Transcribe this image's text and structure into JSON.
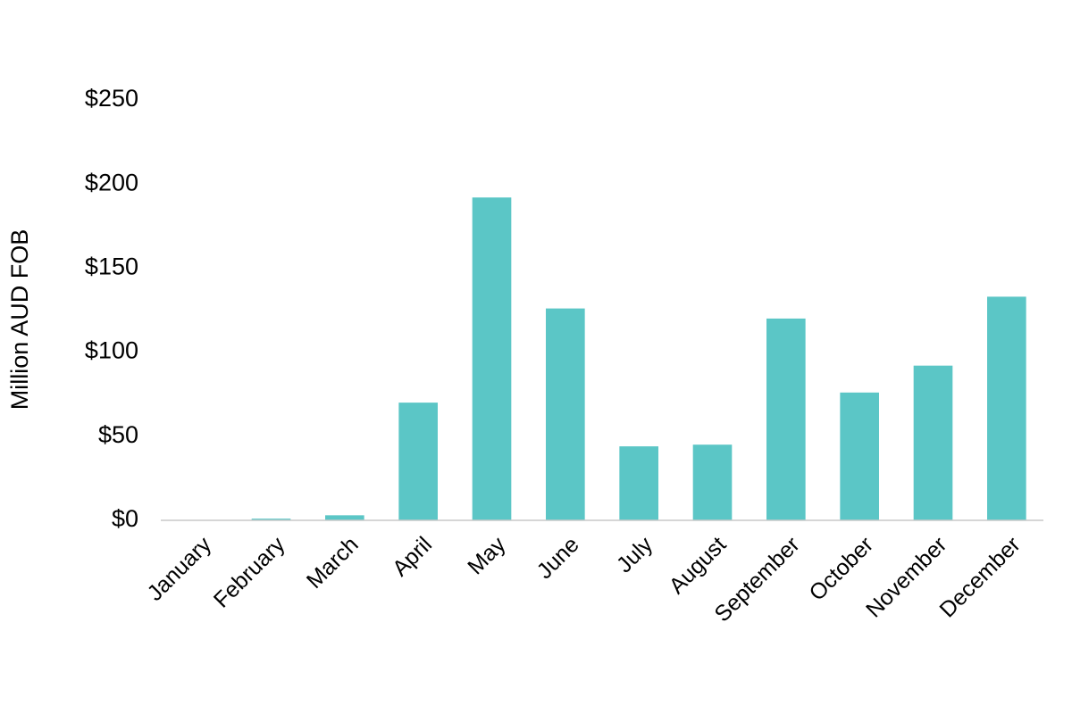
{
  "chart_data": {
    "type": "bar",
    "y_label": "Million AUD FOB",
    "categories": [
      "January",
      "February",
      "March",
      "April",
      "May",
      "June",
      "July",
      "August",
      "September",
      "October",
      "November",
      "December"
    ],
    "values": [
      0,
      1,
      3,
      70,
      192,
      126,
      44,
      45,
      120,
      76,
      92,
      133
    ],
    "color": "#5bc6c6",
    "ylim": [
      0,
      250
    ],
    "yticks": [
      {
        "value": 0,
        "label": "$0"
      },
      {
        "value": 50,
        "label": "$50"
      },
      {
        "value": 100,
        "label": "$100"
      },
      {
        "value": 150,
        "label": "$150"
      },
      {
        "value": 200,
        "label": "$200"
      },
      {
        "value": 250,
        "label": "$250"
      }
    ],
    "grid": false
  }
}
